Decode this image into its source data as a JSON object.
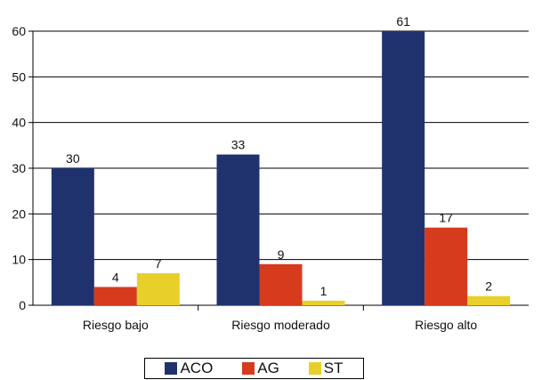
{
  "chart_data": {
    "type": "bar",
    "categories": [
      "Riesgo bajo",
      "Riesgo moderado",
      "Riesgo alto"
    ],
    "series": [
      {
        "name": "ACO",
        "values": [
          30,
          33,
          61
        ],
        "color": "#20326e"
      },
      {
        "name": "AG",
        "values": [
          4,
          9,
          17
        ],
        "color": "#d63b1e"
      },
      {
        "name": "ST",
        "values": [
          7,
          1,
          2
        ],
        "color": "#e8cf2a"
      }
    ],
    "data_labels": [
      [
        "30",
        "4",
        "7"
      ],
      [
        "33",
        "9",
        "1"
      ],
      [
        "61",
        "17",
        "2"
      ]
    ],
    "title": "",
    "xlabel": "",
    "ylabel": "",
    "ylim": [
      0,
      60
    ],
    "yticks": [
      0,
      10,
      20,
      30,
      40,
      50,
      60
    ],
    "grid": "horizontal",
    "legend": "bottom"
  }
}
